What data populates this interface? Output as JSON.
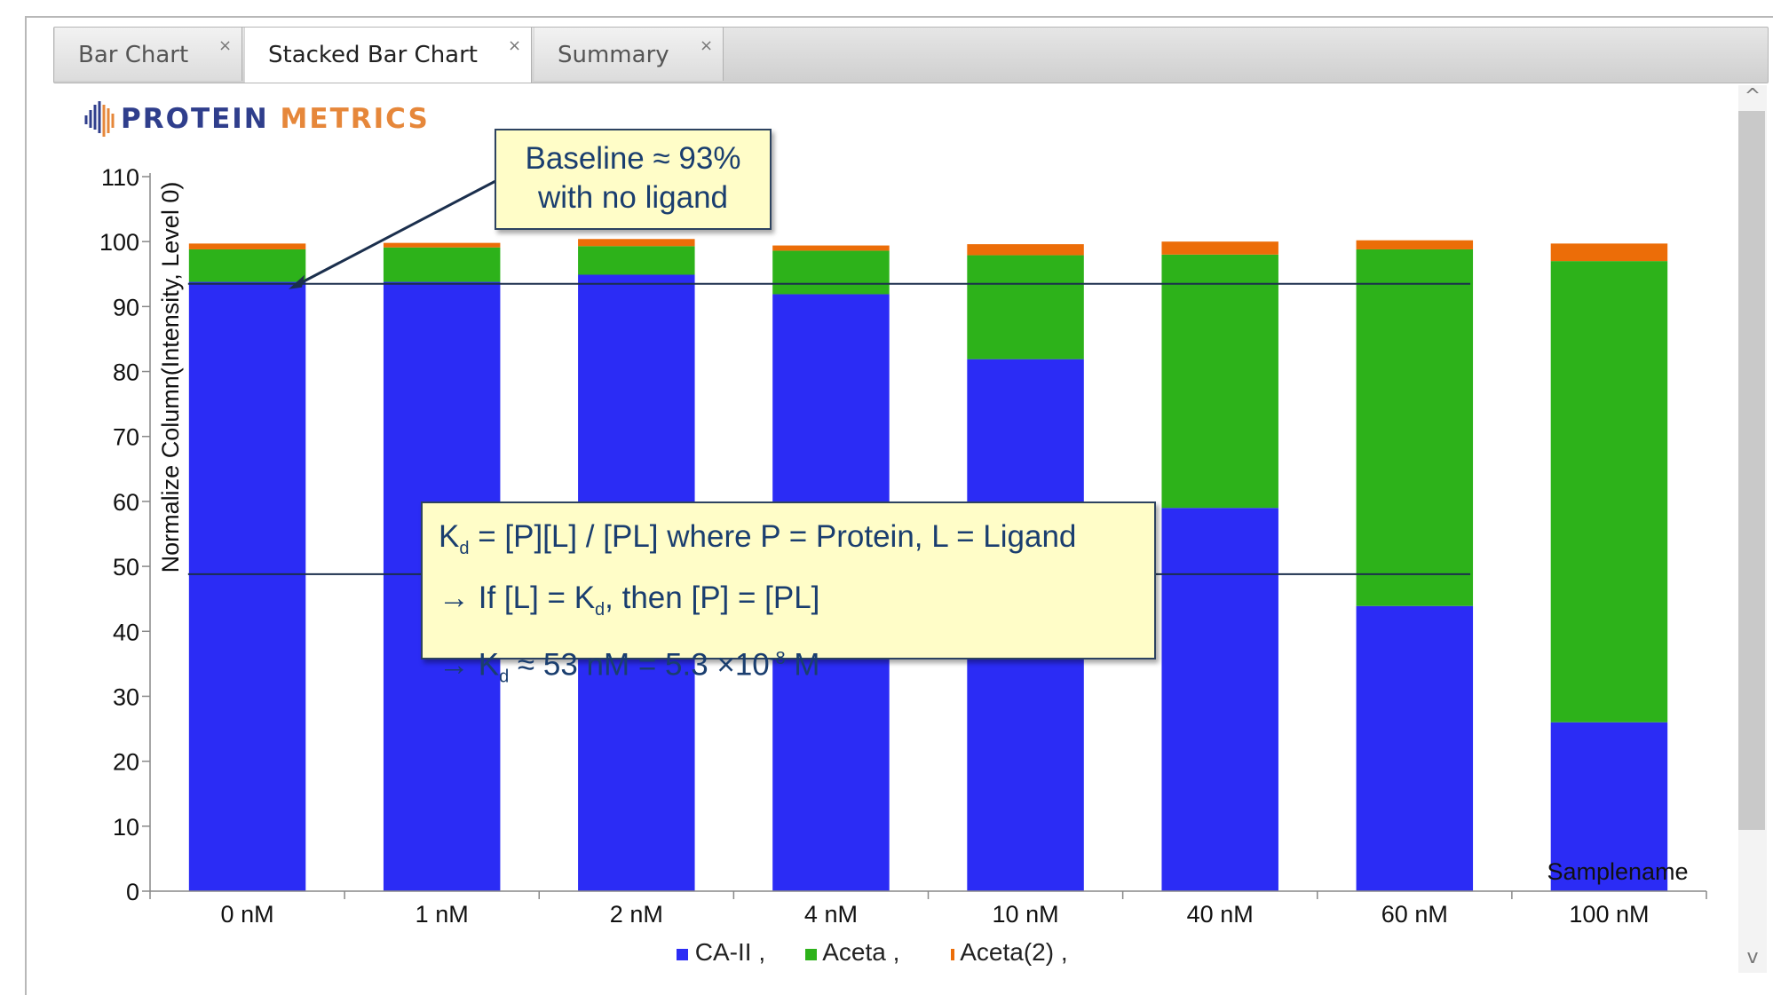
{
  "tabs": [
    {
      "label": "Bar Chart",
      "close": "×",
      "active": false
    },
    {
      "label": "Stacked Bar Chart",
      "close": "×",
      "active": true
    },
    {
      "label": "Summary",
      "close": "×",
      "active": false
    }
  ],
  "logo": {
    "word1": "PROTEIN",
    "word2": "METRICS",
    "color1": "#2f3e8c",
    "color2": "#e6873a"
  },
  "scroll": {
    "up": "^",
    "down": "v"
  },
  "callouts": {
    "baseline_line1": "Baseline ≈ 93%",
    "baseline_line2": "with no ligand",
    "kd_line1_a": "K",
    "kd_line1_sub": "d",
    "kd_line1_b": " = [P][L] / [PL] where P = Protein, L = Ligand",
    "kd_line2_a": "→  If [L] = K",
    "kd_line2_sub": "d",
    "kd_line2_b": ", then [P] = [PL]",
    "kd_line3_a": "→  K",
    "kd_line3_sub": "d",
    "kd_line3_b": " ≈ 53 nM = 5.3 ×10",
    "kd_line3_sup": "-8",
    "kd_line3_c": " M"
  },
  "chart_data": {
    "type": "bar",
    "stacked": true,
    "categories": [
      "0 nM",
      "1 nM",
      "2 nM",
      "4 nM",
      "10 nM",
      "40 nM",
      "60 nM",
      "100 nM"
    ],
    "series": [
      {
        "name": "CA-II",
        "color": "#2b2cf5",
        "values": [
          93.8,
          93.8,
          94.9,
          91.9,
          81.9,
          59.0,
          43.9,
          26.0
        ]
      },
      {
        "name": "Aceta",
        "color": "#2db21a",
        "values": [
          5.0,
          5.3,
          4.4,
          6.7,
          16.0,
          39.0,
          54.9,
          71.0
        ]
      },
      {
        "name": "Aceta(2)",
        "color": "#ec6d08",
        "values": [
          0.9,
          0.7,
          1.1,
          0.8,
          1.7,
          2.0,
          1.4,
          2.7
        ]
      }
    ],
    "ylabel": "Normalize Column(Intensity, Level 0)",
    "xlabel": "Samplename",
    "ylim": [
      0,
      110
    ],
    "yticks": [
      0,
      10,
      20,
      30,
      40,
      50,
      60,
      70,
      80,
      90,
      100,
      110
    ],
    "legend": {
      "position": "bottom",
      "entries": [
        "CA-II ,",
        "Aceta ,",
        "Aceta(2) ,"
      ]
    },
    "annotations": [
      {
        "type": "hline",
        "y": 93.5,
        "x_from": "0 nM",
        "x_to": "60 nM"
      },
      {
        "type": "hline",
        "y": 48.8,
        "x_from": "0 nM",
        "x_to": "60 nM"
      }
    ]
  }
}
